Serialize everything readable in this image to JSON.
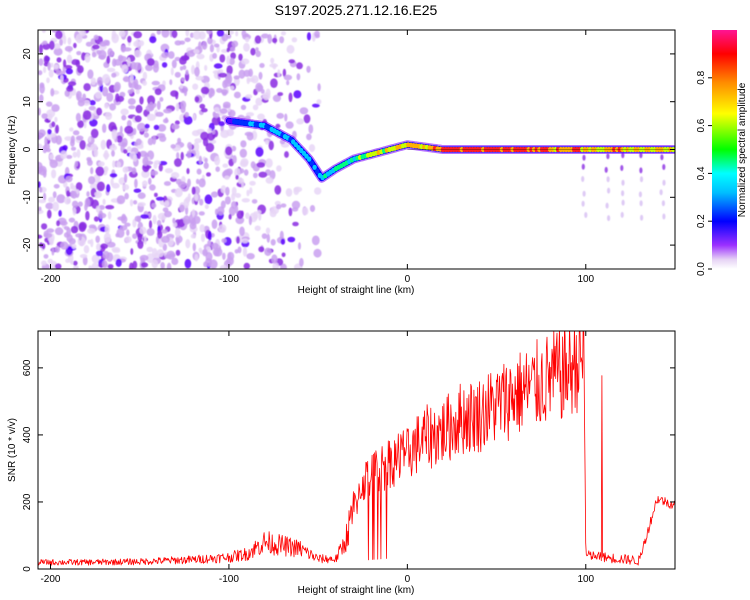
{
  "title": "S197.2025.271.12.16.E25",
  "chart_data": [
    {
      "type": "heatmap",
      "name": "spectrogram",
      "title": "S197.2025.271.12.16.E25",
      "xlabel": "Height of straight line (km)",
      "ylabel": "Frequency (Hz)",
      "xlim": [
        -207,
        150
      ],
      "ylim": [
        -25,
        25
      ],
      "xticks": [
        -200,
        -100,
        0,
        100
      ],
      "xtick_labels": [
        "-200",
        "-100",
        "0",
        "100"
      ],
      "yticks": [
        -20,
        -10,
        0,
        10,
        20
      ],
      "ytick_labels": [
        "-20",
        "-10",
        "0",
        "10",
        "20"
      ],
      "colorbar": {
        "label": "Normalized spectral amplitude",
        "range": [
          0,
          1
        ],
        "ticks": [
          0.0,
          0.2,
          0.4,
          0.6,
          0.8
        ],
        "tick_labels": [
          "0.0",
          "0.2",
          "0.4",
          "0.6",
          "0.8"
        ],
        "colors": [
          "#e6d2f5",
          "#7b00ff",
          "#0000ff",
          "#00ffff",
          "#00ff00",
          "#ffff00",
          "#ff8c00",
          "#ff0000",
          "#ff00aa"
        ]
      },
      "ridge": {
        "x": [
          -100,
          -80,
          -65,
          -55,
          -48,
          -40,
          -30,
          -20,
          -10,
          0,
          20,
          60,
          90,
          120,
          150
        ],
        "freq": [
          6,
          5,
          2,
          -2,
          -6,
          -4,
          -2,
          -1,
          0,
          1,
          0,
          0,
          0,
          0,
          0
        ],
        "amplitude": [
          0.3,
          0.4,
          0.4,
          0.45,
          0.4,
          0.5,
          0.5,
          0.6,
          0.7,
          0.7,
          0.9,
          0.95,
          0.8,
          0.75,
          0.7
        ]
      }
    },
    {
      "type": "line",
      "name": "snr",
      "xlabel": "Height of straight line (km)",
      "ylabel": "SNR (10 * v/v)",
      "xlim": [
        -207,
        150
      ],
      "ylim": [
        0,
        710
      ],
      "xticks": [
        -200,
        -100,
        0,
        100
      ],
      "xtick_labels": [
        "-200",
        "-100",
        "0",
        "100"
      ],
      "yticks": [
        0,
        200,
        400,
        600
      ],
      "ytick_labels": [
        "0",
        "200",
        "400",
        "600"
      ],
      "color": "#ff0000",
      "series": {
        "x": [
          -207,
          -180,
          -150,
          -120,
          -100,
          -90,
          -80,
          -70,
          -60,
          -50,
          -40,
          -35,
          -30,
          -25,
          -20,
          -10,
          0,
          10,
          20,
          30,
          40,
          50,
          60,
          70,
          80,
          90,
          99,
          100,
          102,
          110,
          120,
          130,
          140,
          150
        ],
        "y": [
          20,
          20,
          22,
          28,
          35,
          45,
          80,
          70,
          60,
          30,
          30,
          80,
          180,
          260,
          280,
          320,
          350,
          390,
          410,
          450,
          460,
          490,
          520,
          540,
          570,
          590,
          640,
          40,
          40,
          35,
          30,
          25,
          210,
          190
        ]
      }
    }
  ]
}
